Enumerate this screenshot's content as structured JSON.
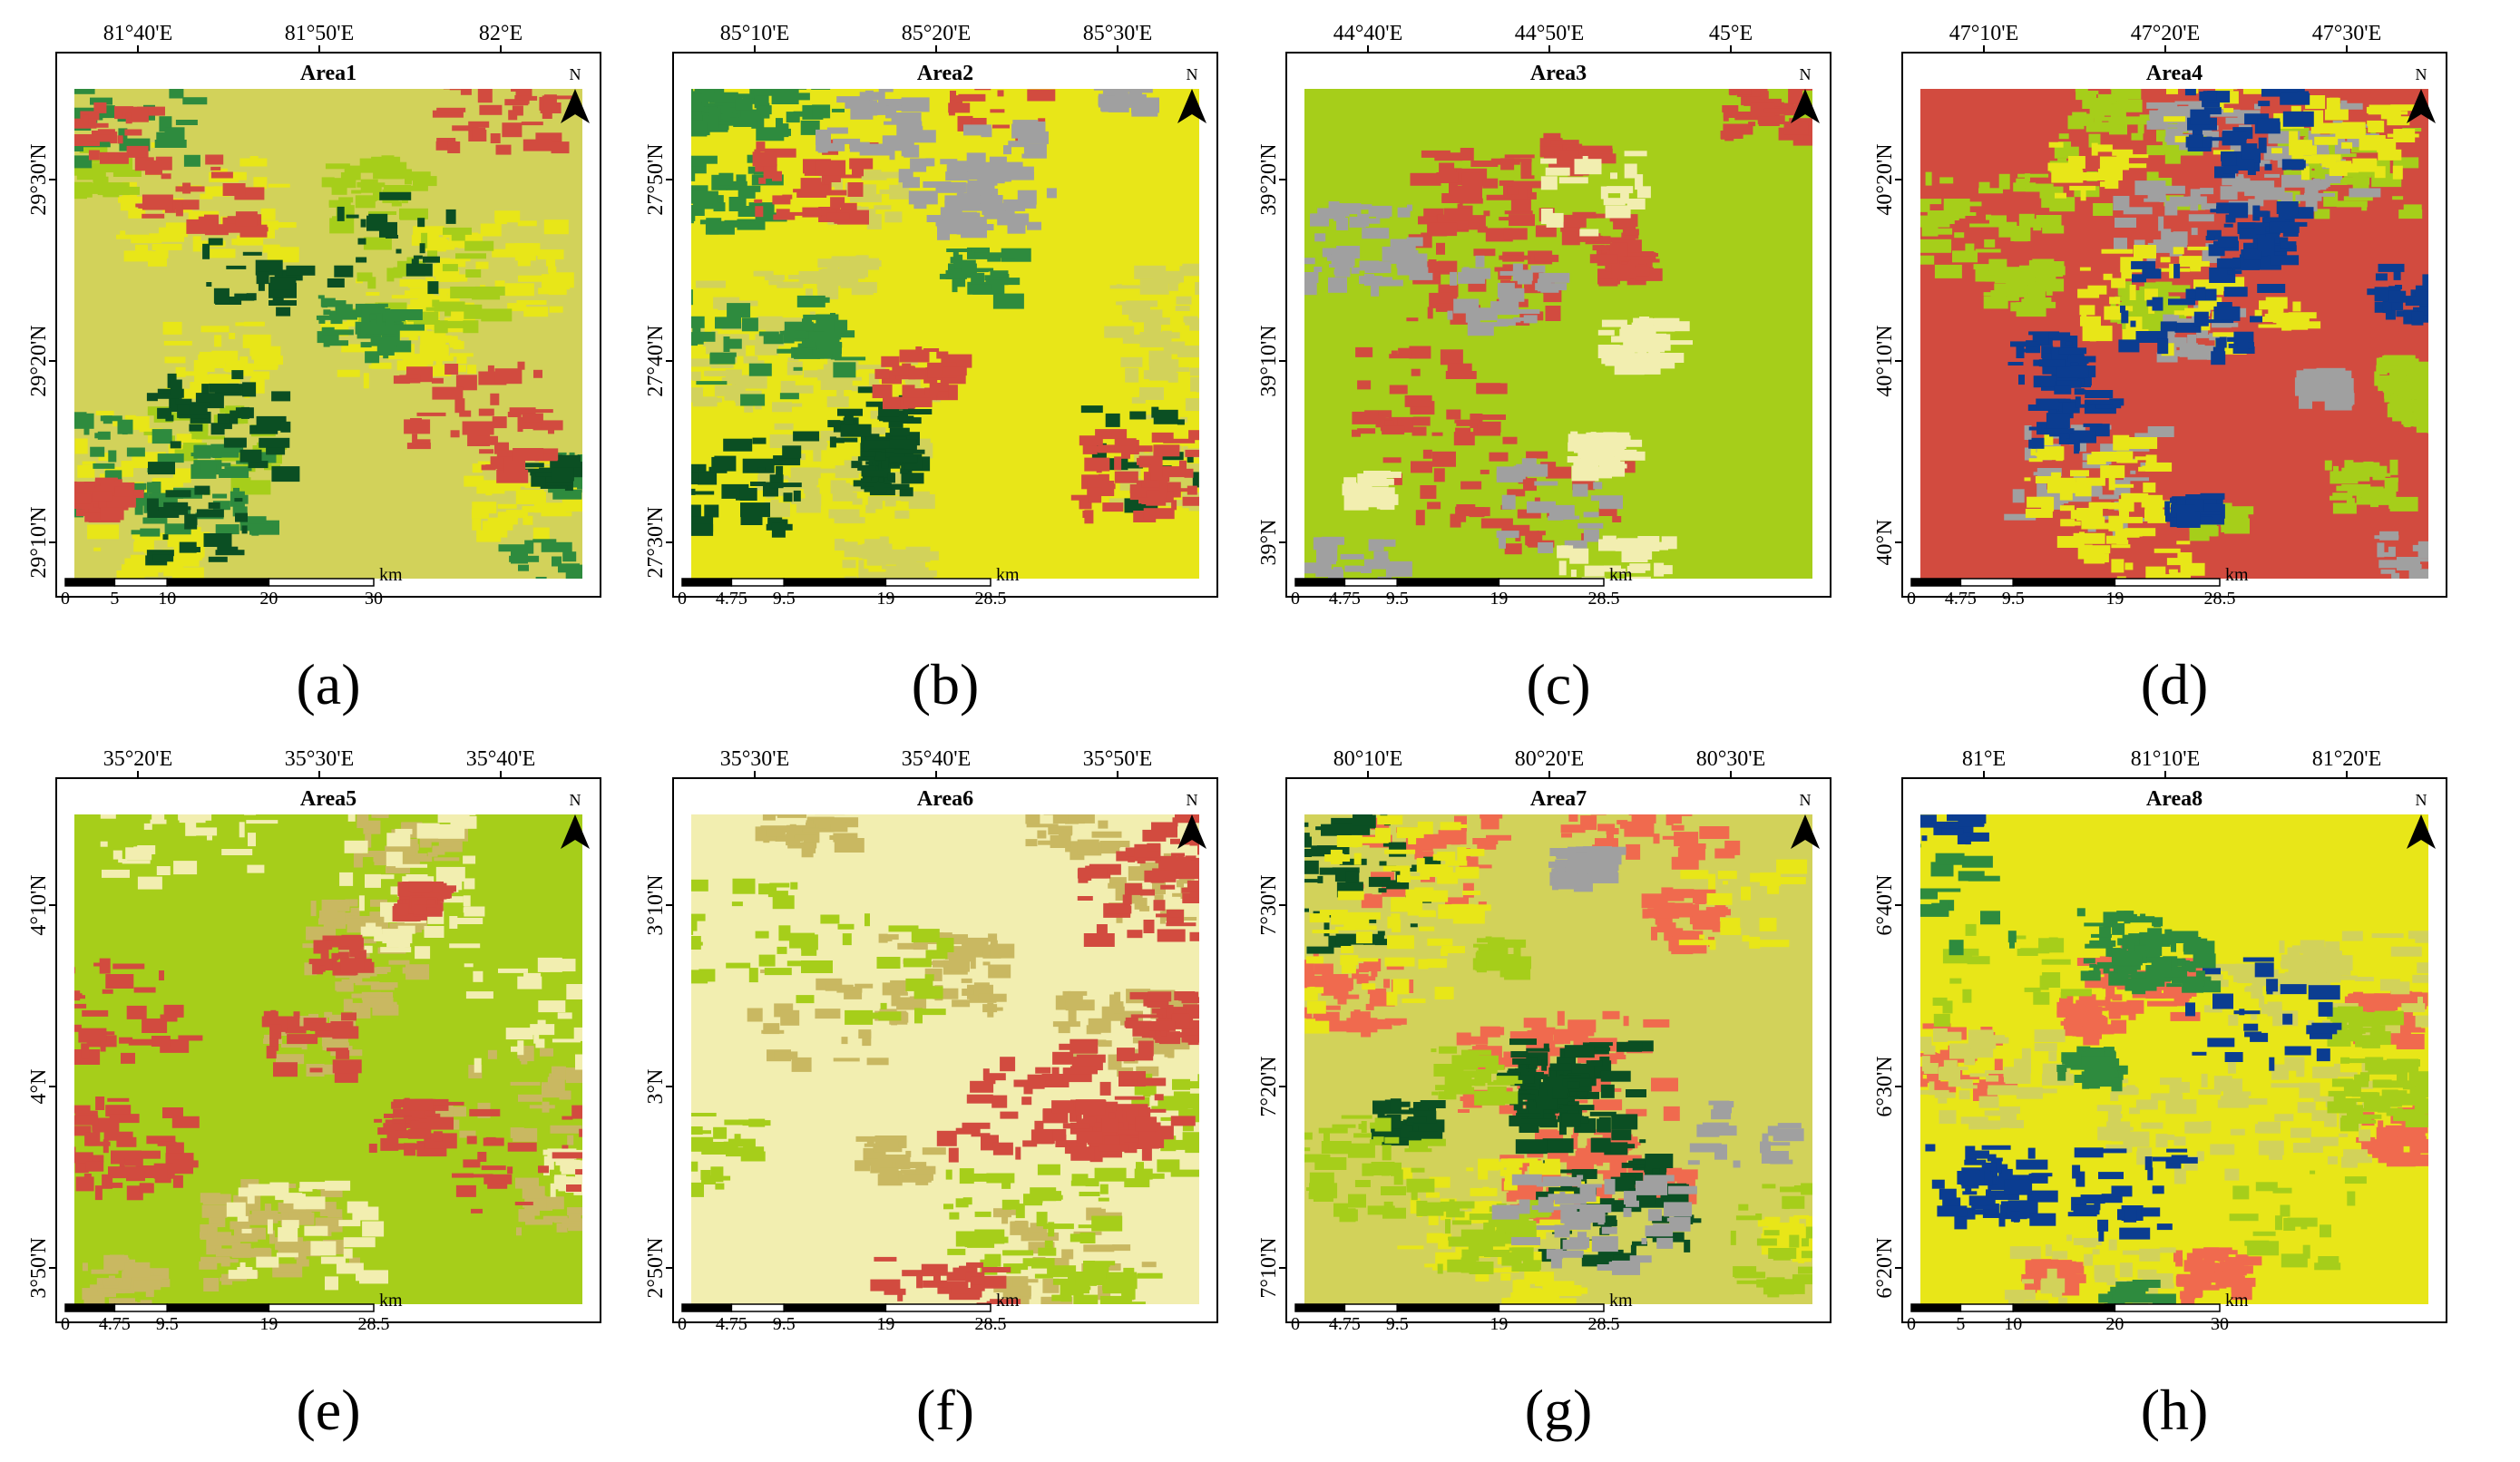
{
  "figure": {
    "scale_unit": "km",
    "north_label": "N"
  },
  "palette": {
    "dark_green": "#0b4f23",
    "green": "#2e8b3e",
    "yellow_green": "#a6ce1a",
    "light_olive": "#d2d25a",
    "tan": "#c9b861",
    "pale_yellow": "#f2eeb0",
    "yellow": "#e8e618",
    "red": "#d24b3f",
    "salmon": "#f06a4e",
    "gray": "#a0a0a0",
    "blue": "#0b3d91"
  },
  "panels": [
    {
      "id": "a",
      "caption": "(a)",
      "title": "Area1",
      "top_labels": [
        "81°40'E",
        "81°50'E",
        "82°E"
      ],
      "left_labels": [
        "29°30'N",
        "29°20'N",
        "29°10'N"
      ],
      "scale_labels": [
        "0",
        "5",
        "10",
        "20",
        "30"
      ],
      "base": "light_olive",
      "layers": [
        "yellow",
        "yellow_green",
        "green",
        "dark_green",
        "red"
      ]
    },
    {
      "id": "b",
      "caption": "(b)",
      "title": "Area2",
      "top_labels": [
        "85°10'E",
        "85°20'E",
        "85°30'E"
      ],
      "left_labels": [
        "27°50'N",
        "27°40'N",
        "27°30'N"
      ],
      "scale_labels": [
        "0",
        "4.75",
        "9.5",
        "19",
        "28.5"
      ],
      "base": "yellow",
      "layers": [
        "light_olive",
        "green",
        "dark_green",
        "red",
        "gray"
      ]
    },
    {
      "id": "c",
      "caption": "(c)",
      "title": "Area3",
      "top_labels": [
        "44°40'E",
        "44°50'E",
        "45°E"
      ],
      "left_labels": [
        "39°20'N",
        "39°10'N",
        "39°N"
      ],
      "scale_labels": [
        "0",
        "4.75",
        "9.5",
        "19",
        "28.5"
      ],
      "base": "yellow_green",
      "layers": [
        "red",
        "gray",
        "pale_yellow"
      ]
    },
    {
      "id": "d",
      "caption": "(d)",
      "title": "Area4",
      "top_labels": [
        "47°10'E",
        "47°20'E",
        "47°30'E"
      ],
      "left_labels": [
        "40°20'N",
        "40°10'N",
        "40°N"
      ],
      "scale_labels": [
        "0",
        "4.75",
        "9.5",
        "19",
        "28.5"
      ],
      "base": "red",
      "layers": [
        "yellow_green",
        "gray",
        "yellow",
        "blue"
      ]
    },
    {
      "id": "e",
      "caption": "(e)",
      "title": "Area5",
      "top_labels": [
        "35°20'E",
        "35°30'E",
        "35°40'E"
      ],
      "left_labels": [
        "4°10'N",
        "4°N",
        "3°50'N"
      ],
      "scale_labels": [
        "0",
        "4.75",
        "9.5",
        "19",
        "28.5"
      ],
      "base": "yellow_green",
      "layers": [
        "tan",
        "pale_yellow",
        "red"
      ]
    },
    {
      "id": "f",
      "caption": "(f)",
      "title": "Area6",
      "top_labels": [
        "35°30'E",
        "35°40'E",
        "35°50'E"
      ],
      "left_labels": [
        "3°10'N",
        "3°N",
        "2°50'N"
      ],
      "scale_labels": [
        "0",
        "4.75",
        "9.5",
        "19",
        "28.5"
      ],
      "base": "pale_yellow",
      "layers": [
        "tan",
        "yellow_green",
        "red"
      ]
    },
    {
      "id": "g",
      "caption": "(g)",
      "title": "Area7",
      "top_labels": [
        "80°10'E",
        "80°20'E",
        "80°30'E"
      ],
      "left_labels": [
        "7°30'N",
        "7°20'N",
        "7°10'N"
      ],
      "scale_labels": [
        "0",
        "4.75",
        "9.5",
        "19",
        "28.5"
      ],
      "base": "light_olive",
      "layers": [
        "salmon",
        "dark_green",
        "yellow",
        "yellow_green",
        "gray"
      ]
    },
    {
      "id": "h",
      "caption": "(h)",
      "title": "Area8",
      "top_labels": [
        "81°E",
        "81°10'E",
        "81°20'E"
      ],
      "left_labels": [
        "6°40'N",
        "6°30'N",
        "6°20'N"
      ],
      "scale_labels": [
        "0",
        "5",
        "10",
        "20",
        "30"
      ],
      "base": "yellow",
      "layers": [
        "salmon",
        "light_olive",
        "yellow_green",
        "blue",
        "green"
      ]
    }
  ]
}
